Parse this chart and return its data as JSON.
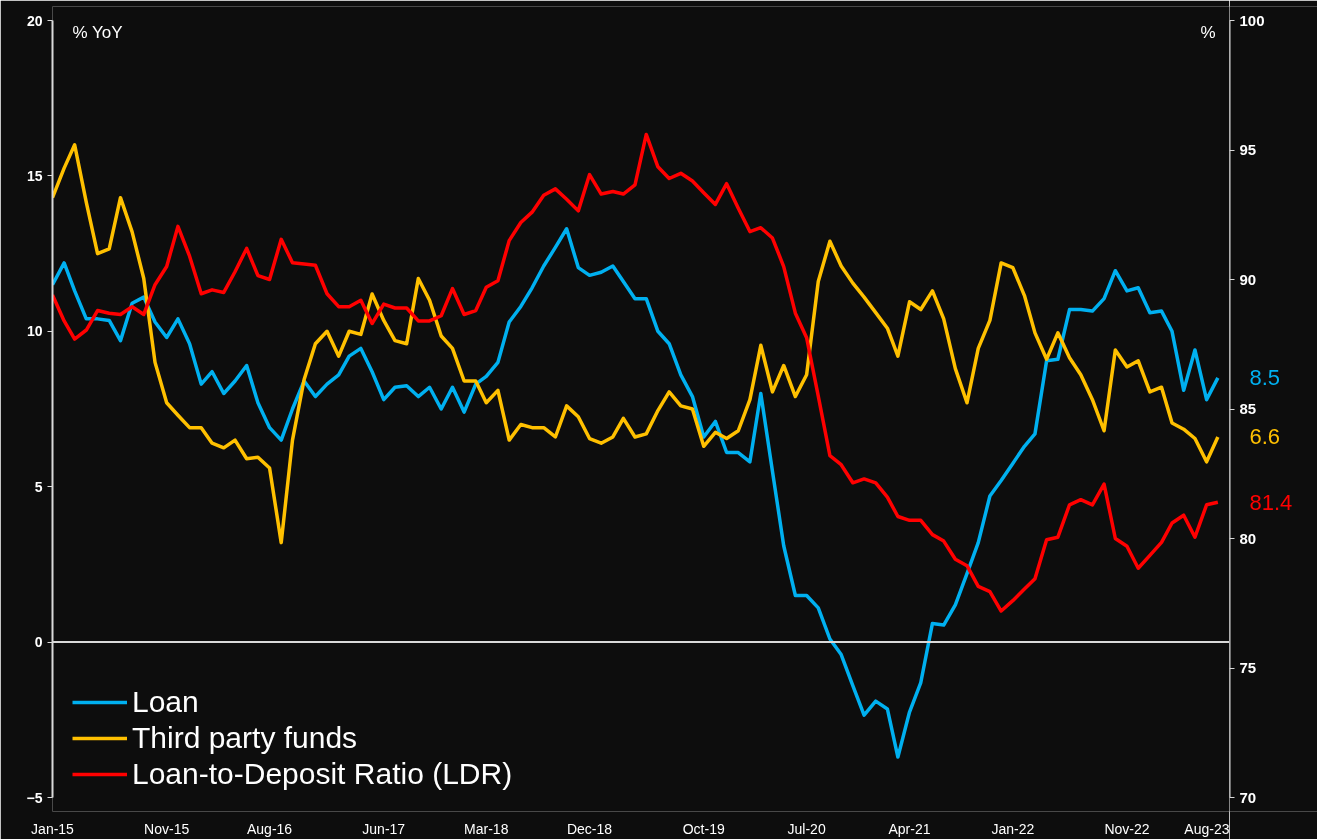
{
  "chart_data": {
    "type": "line",
    "ylabel": "% YoY",
    "y2label": "%",
    "x": [
      "2015-01",
      "2015-02",
      "2015-03",
      "2015-04",
      "2015-05",
      "2015-06",
      "2015-07",
      "2015-08",
      "2015-09",
      "2015-10",
      "2015-11",
      "2015-12",
      "2016-01",
      "2016-02",
      "2016-03",
      "2016-04",
      "2016-05",
      "2016-06",
      "2016-07",
      "2016-08",
      "2016-09",
      "2016-10",
      "2016-11",
      "2016-12",
      "2017-01",
      "2017-02",
      "2017-03",
      "2017-04",
      "2017-05",
      "2017-06",
      "2017-07",
      "2017-08",
      "2017-09",
      "2017-10",
      "2017-11",
      "2017-12",
      "2018-01",
      "2018-02",
      "2018-03",
      "2018-04",
      "2018-05",
      "2018-06",
      "2018-07",
      "2018-08",
      "2018-09",
      "2018-10",
      "2018-11",
      "2018-12",
      "2019-01",
      "2019-02",
      "2019-03",
      "2019-04",
      "2019-05",
      "2019-06",
      "2019-07",
      "2019-08",
      "2019-09",
      "2019-10",
      "2019-11",
      "2019-12",
      "2020-01",
      "2020-02",
      "2020-03",
      "2020-04",
      "2020-05",
      "2020-06",
      "2020-07",
      "2020-08",
      "2020-09",
      "2020-10",
      "2020-11",
      "2020-12",
      "2021-01",
      "2021-02",
      "2021-03",
      "2021-04",
      "2021-05",
      "2021-06",
      "2021-07",
      "2021-08",
      "2021-09",
      "2021-10",
      "2021-11",
      "2021-12",
      "2022-01",
      "2022-02",
      "2022-03",
      "2022-04",
      "2022-05",
      "2022-06",
      "2022-07",
      "2022-08",
      "2022-09",
      "2022-10",
      "2022-11",
      "2022-12",
      "2023-01",
      "2023-02",
      "2023-03",
      "2023-04",
      "2023-05",
      "2023-06",
      "2023-07"
    ],
    "xlim": [
      "2015-01",
      "2023-08"
    ],
    "xticks": [
      {
        "value": "2015-01",
        "label": "Jan-15"
      },
      {
        "value": "2015-11",
        "label": "Nov-15"
      },
      {
        "value": "2016-08",
        "label": "Aug-16"
      },
      {
        "value": "2017-06",
        "label": "Jun-17"
      },
      {
        "value": "2018-03",
        "label": "Mar-18"
      },
      {
        "value": "2018-12",
        "label": "Dec-18"
      },
      {
        "value": "2019-10",
        "label": "Oct-19"
      },
      {
        "value": "2020-07",
        "label": "Jul-20"
      },
      {
        "value": "2021-04",
        "label": "Apr-21"
      },
      {
        "value": "2022-01",
        "label": "Jan-22"
      },
      {
        "value": "2022-11",
        "label": "Nov-22"
      },
      {
        "value": "2023-08",
        "label": "Aug-23"
      }
    ],
    "ylim": [
      -5,
      20
    ],
    "yticks": [
      -5,
      0,
      5,
      10,
      15,
      20
    ],
    "y2lim": [
      70,
      100
    ],
    "y2ticks": [
      70,
      75,
      80,
      85,
      90,
      95,
      100
    ],
    "grid": false,
    "legend": "bottom left",
    "line_style": "solid",
    "marker": "none",
    "ref_lines": [
      {
        "axis": "y",
        "value": 0,
        "color": "#d9d9d9"
      }
    ],
    "series": [
      {
        "name": "Loan",
        "color": "#00b0f0",
        "values": [
          11.5,
          12.2,
          11.3,
          10.4,
          10.4,
          10.35,
          9.7,
          10.9,
          11.1,
          10.3,
          9.8,
          10.4,
          9.6,
          8.3,
          8.7,
          8.0,
          8.4,
          8.9,
          7.7,
          6.9,
          6.5,
          7.5,
          8.4,
          7.9,
          8.3,
          8.6,
          9.2,
          9.45,
          8.7,
          7.8,
          8.2,
          8.25,
          7.9,
          8.2,
          7.5,
          8.2,
          7.4,
          8.3,
          8.55,
          9.0,
          10.3,
          10.8,
          11.4,
          12.1,
          12.7,
          13.3,
          12.05,
          11.8,
          11.9,
          12.1,
          11.6,
          11.05,
          11.05,
          10.0,
          9.6,
          8.6,
          7.9,
          6.6,
          7.1,
          6.1,
          6.1,
          5.8,
          8.0,
          5.5,
          3.1,
          1.5,
          1.5,
          1.1,
          0.1,
          -0.4,
          -1.4,
          -2.35,
          -1.9,
          -2.15,
          -3.7,
          -2.25,
          -1.3,
          0.6,
          0.55,
          1.2,
          2.2,
          3.2,
          4.7,
          5.2,
          5.75,
          6.3,
          6.7,
          9.05,
          9.1,
          10.7,
          10.7,
          10.65,
          11.05,
          11.95,
          11.3,
          11.4,
          10.6,
          10.65,
          10.0,
          8.1,
          9.4,
          7.8,
          8.5
        ],
        "value_labels": [
          null,
          null,
          null,
          null,
          null,
          null,
          null,
          null,
          null,
          null,
          null,
          null,
          null,
          null,
          null,
          null,
          null,
          null,
          null,
          null,
          null,
          null,
          null,
          null,
          null,
          null,
          null,
          null,
          null,
          null,
          null,
          null,
          null,
          null,
          null,
          null,
          null,
          null,
          null,
          null,
          null,
          null,
          null,
          null,
          null,
          null,
          null,
          null,
          null,
          null,
          null,
          null,
          null,
          null,
          null,
          null,
          null,
          null,
          null,
          null,
          null,
          null,
          null,
          null,
          null,
          null,
          null,
          null,
          null,
          null,
          null,
          null,
          null,
          null,
          null,
          null,
          null,
          null,
          null,
          null,
          null,
          null,
          null,
          null,
          null,
          null,
          null,
          null,
          null,
          null,
          null,
          null,
          null,
          null,
          null,
          null,
          null,
          null,
          null,
          null,
          null,
          null,
          "8.5"
        ]
      },
      {
        "name": "Third party funds",
        "color": "#ffc000",
        "values": [
          14.3,
          15.25,
          16.0,
          14.15,
          12.5,
          12.65,
          14.3,
          13.2,
          11.7,
          9.0,
          7.7,
          7.3,
          6.9,
          6.9,
          6.4,
          6.25,
          6.5,
          5.9,
          5.95,
          5.6,
          3.2,
          6.5,
          8.45,
          9.6,
          10.0,
          9.2,
          10.0,
          9.9,
          11.2,
          10.35,
          9.7,
          9.6,
          11.7,
          11.0,
          9.85,
          9.45,
          8.4,
          8.4,
          7.7,
          8.1,
          6.5,
          7.0,
          6.9,
          6.9,
          6.6,
          7.6,
          7.25,
          6.55,
          6.4,
          6.6,
          7.2,
          6.6,
          6.7,
          7.45,
          8.05,
          7.6,
          7.5,
          6.3,
          6.75,
          6.55,
          6.8,
          7.8,
          9.55,
          8.05,
          8.9,
          7.9,
          8.6,
          11.6,
          12.9,
          12.1,
          11.55,
          11.1,
          10.6,
          10.1,
          9.2,
          10.95,
          10.7,
          11.3,
          10.4,
          8.8,
          7.7,
          9.45,
          10.35,
          12.2,
          12.05,
          11.15,
          9.95,
          9.1,
          9.95,
          9.15,
          8.6,
          7.8,
          6.8,
          9.4,
          8.85,
          9.05,
          8.05,
          8.2,
          7.05,
          6.85,
          6.55,
          5.8,
          6.6
        ],
        "value_labels": [
          null,
          null,
          null,
          null,
          null,
          null,
          null,
          null,
          null,
          null,
          null,
          null,
          null,
          null,
          null,
          null,
          null,
          null,
          null,
          null,
          null,
          null,
          null,
          null,
          null,
          null,
          null,
          null,
          null,
          null,
          null,
          null,
          null,
          null,
          null,
          null,
          null,
          null,
          null,
          null,
          null,
          null,
          null,
          null,
          null,
          null,
          null,
          null,
          null,
          null,
          null,
          null,
          null,
          null,
          null,
          null,
          null,
          null,
          null,
          null,
          null,
          null,
          null,
          null,
          null,
          null,
          null,
          null,
          null,
          null,
          null,
          null,
          null,
          null,
          null,
          null,
          null,
          null,
          null,
          null,
          null,
          null,
          null,
          null,
          null,
          null,
          null,
          null,
          null,
          null,
          null,
          null,
          null,
          null,
          null,
          null,
          null,
          null,
          null,
          null,
          null,
          null,
          "6.6"
        ]
      },
      {
        "name": "Loan-to-Deposit Ratio (LDR)",
        "color": "#ff0000",
        "axis": "y2",
        "values": [
          89.4,
          88.4,
          87.7,
          88.05,
          88.8,
          88.7,
          88.65,
          88.95,
          88.65,
          89.8,
          90.5,
          92.05,
          90.9,
          89.45,
          89.6,
          89.5,
          90.3,
          91.2,
          90.15,
          90.0,
          91.55,
          90.65,
          90.6,
          90.55,
          89.45,
          88.95,
          88.95,
          89.2,
          88.3,
          89.05,
          88.9,
          88.9,
          88.4,
          88.4,
          88.6,
          89.65,
          88.65,
          88.8,
          89.7,
          89.95,
          91.5,
          92.2,
          92.6,
          93.25,
          93.5,
          93.1,
          92.65,
          94.05,
          93.3,
          93.4,
          93.3,
          93.65,
          95.6,
          94.35,
          93.9,
          94.1,
          93.8,
          93.35,
          92.9,
          93.7,
          92.75,
          91.85,
          92.0,
          91.6,
          90.5,
          88.7,
          87.75,
          85.5,
          83.2,
          82.85,
          82.15,
          82.3,
          82.15,
          81.6,
          80.85,
          80.7,
          80.7,
          80.15,
          79.9,
          79.2,
          78.95,
          78.15,
          77.95,
          77.2,
          77.6,
          78.05,
          78.45,
          79.95,
          80.05,
          81.3,
          81.5,
          81.3,
          82.1,
          80.0,
          79.7,
          78.85,
          79.35,
          79.85,
          80.6,
          80.9,
          80.05,
          81.3,
          81.4
        ],
        "value_labels": [
          null,
          null,
          null,
          null,
          null,
          null,
          null,
          null,
          null,
          null,
          null,
          null,
          null,
          null,
          null,
          null,
          null,
          null,
          null,
          null,
          null,
          null,
          null,
          null,
          null,
          null,
          null,
          null,
          null,
          null,
          null,
          null,
          null,
          null,
          null,
          null,
          null,
          null,
          null,
          null,
          null,
          null,
          null,
          null,
          null,
          null,
          null,
          null,
          null,
          null,
          null,
          null,
          null,
          null,
          null,
          null,
          null,
          null,
          null,
          null,
          null,
          null,
          null,
          null,
          null,
          null,
          null,
          null,
          null,
          null,
          null,
          null,
          null,
          null,
          null,
          null,
          null,
          null,
          null,
          null,
          null,
          null,
          null,
          null,
          null,
          null,
          null,
          null,
          null,
          null,
          null,
          null,
          null,
          null,
          null,
          null,
          null,
          null,
          null,
          null,
          null,
          null,
          "81.4"
        ]
      }
    ]
  }
}
